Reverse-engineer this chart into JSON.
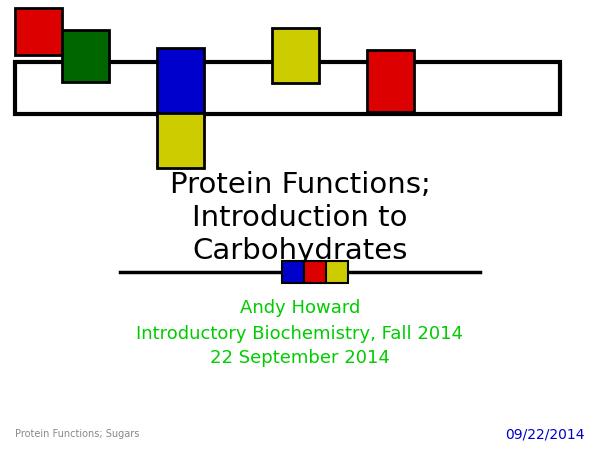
{
  "title_line1": "Protein Functions;",
  "title_line2": "Introduction to",
  "title_line3": "Carbohydrates",
  "subtitle_line1": "Andy Howard",
  "subtitle_line2": "Introductory Biochemistry, Fall 2014",
  "subtitle_line3": "22 September 2014",
  "footer_left": "Protein Functions; Sugars",
  "footer_right": "09/22/2014",
  "bg_color": "#ffffff",
  "title_color": "#000000",
  "subtitle_color": "#00cc00",
  "footer_left_color": "#888888",
  "footer_right_color": "#0000cc",
  "border_color": "#000000",
  "red": "#dd0000",
  "green": "#006600",
  "blue": "#0000cc",
  "yellow": "#cccc00"
}
